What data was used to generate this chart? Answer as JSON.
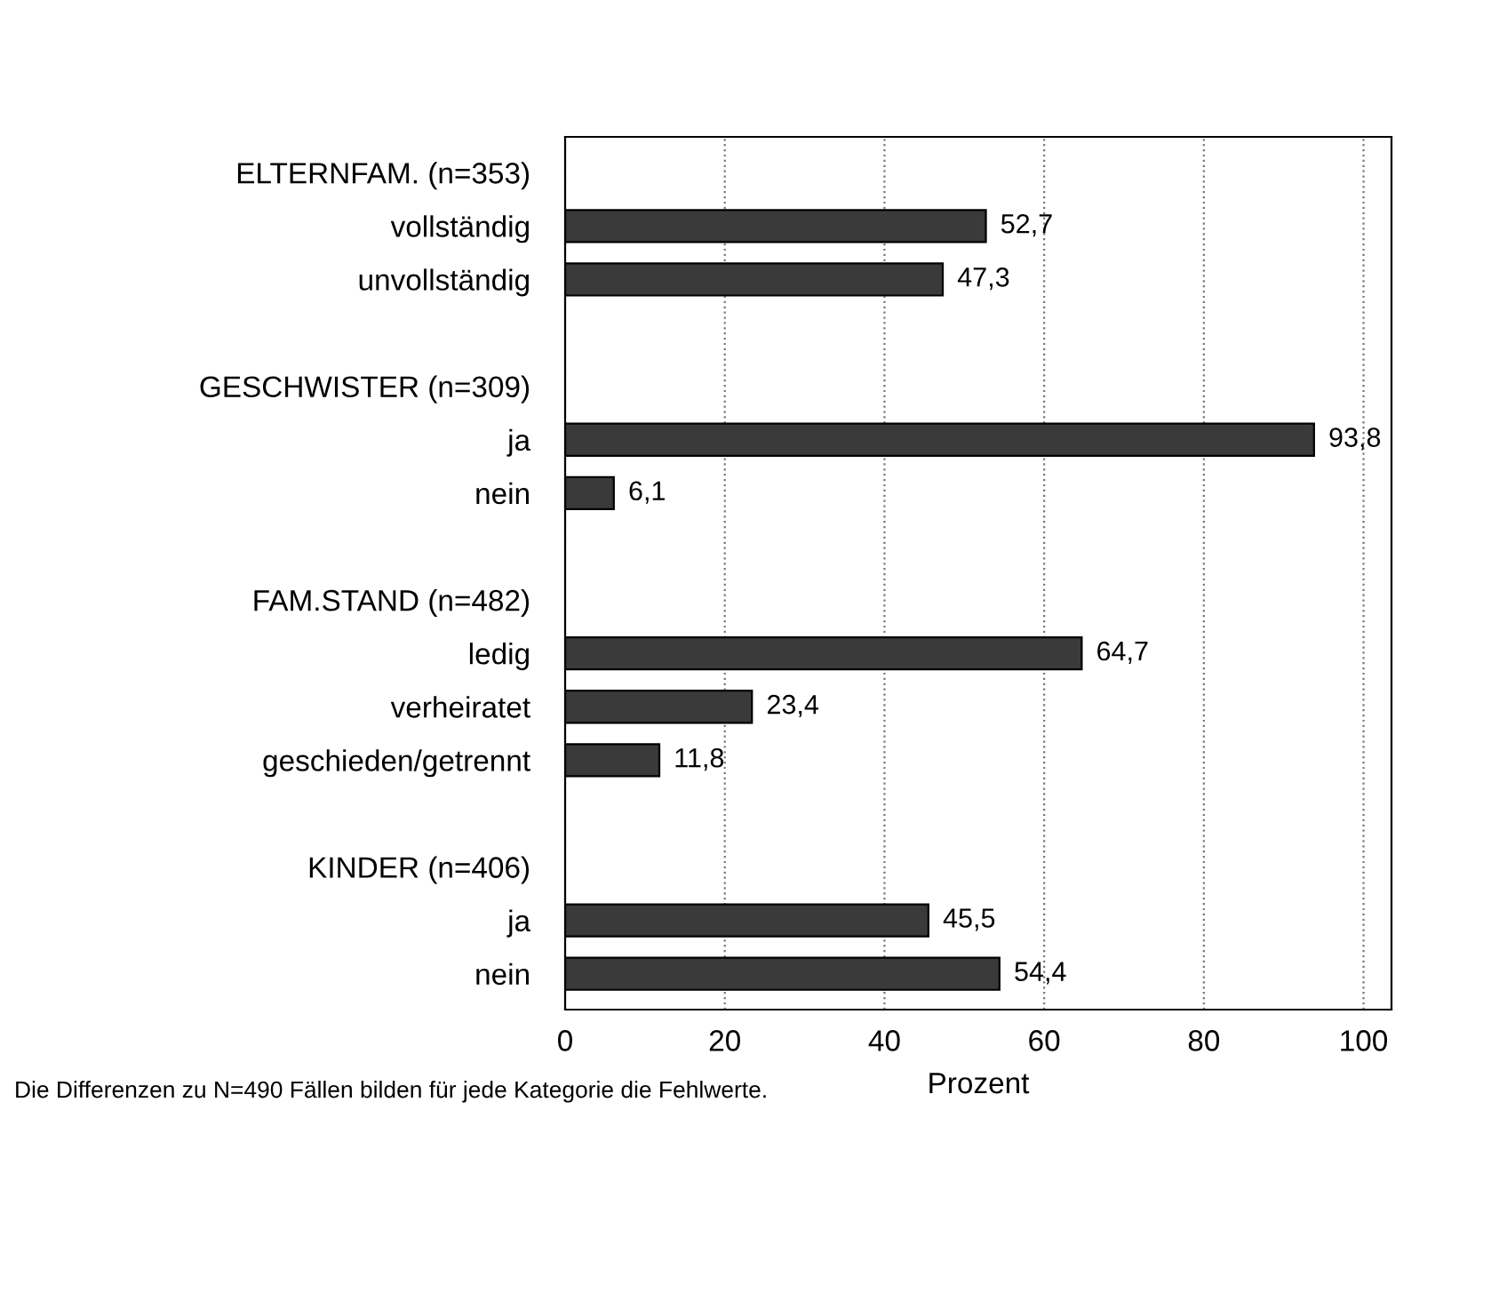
{
  "chart_data": {
    "type": "bar",
    "orientation": "horizontal",
    "xlabel": "Prozent",
    "categories": [
      "ELTERNFAM. (n=353)",
      "vollständig",
      "unvollständig",
      null,
      "GESCHWISTER (n=309)",
      "ja",
      "nein",
      null,
      "FAM.STAND (n=482)",
      "ledig",
      "verheiratet",
      "geschieden/getrennt",
      null,
      "KINDER (n=406)",
      "ja",
      "nein"
    ],
    "values": [
      null,
      52.7,
      47.3,
      null,
      null,
      93.8,
      6.1,
      null,
      null,
      64.7,
      23.4,
      11.8,
      null,
      null,
      45.5,
      54.4
    ],
    "value_labels": [
      null,
      "52,7",
      "47,3",
      null,
      null,
      "93,8",
      "6,1",
      null,
      null,
      "64,7",
      "23,4",
      "11,8",
      null,
      null,
      "45,5",
      "54,4"
    ],
    "color": "#3a3a3a",
    "xlim": [
      0,
      103.5
    ],
    "xticks": [
      0,
      20,
      40,
      60,
      80,
      100
    ],
    "grid": "x",
    "legend": false,
    "annotations": [
      "Die Differenzen zu N=490 Fällen bilden für jede Kategorie die Fehlwerte."
    ]
  }
}
